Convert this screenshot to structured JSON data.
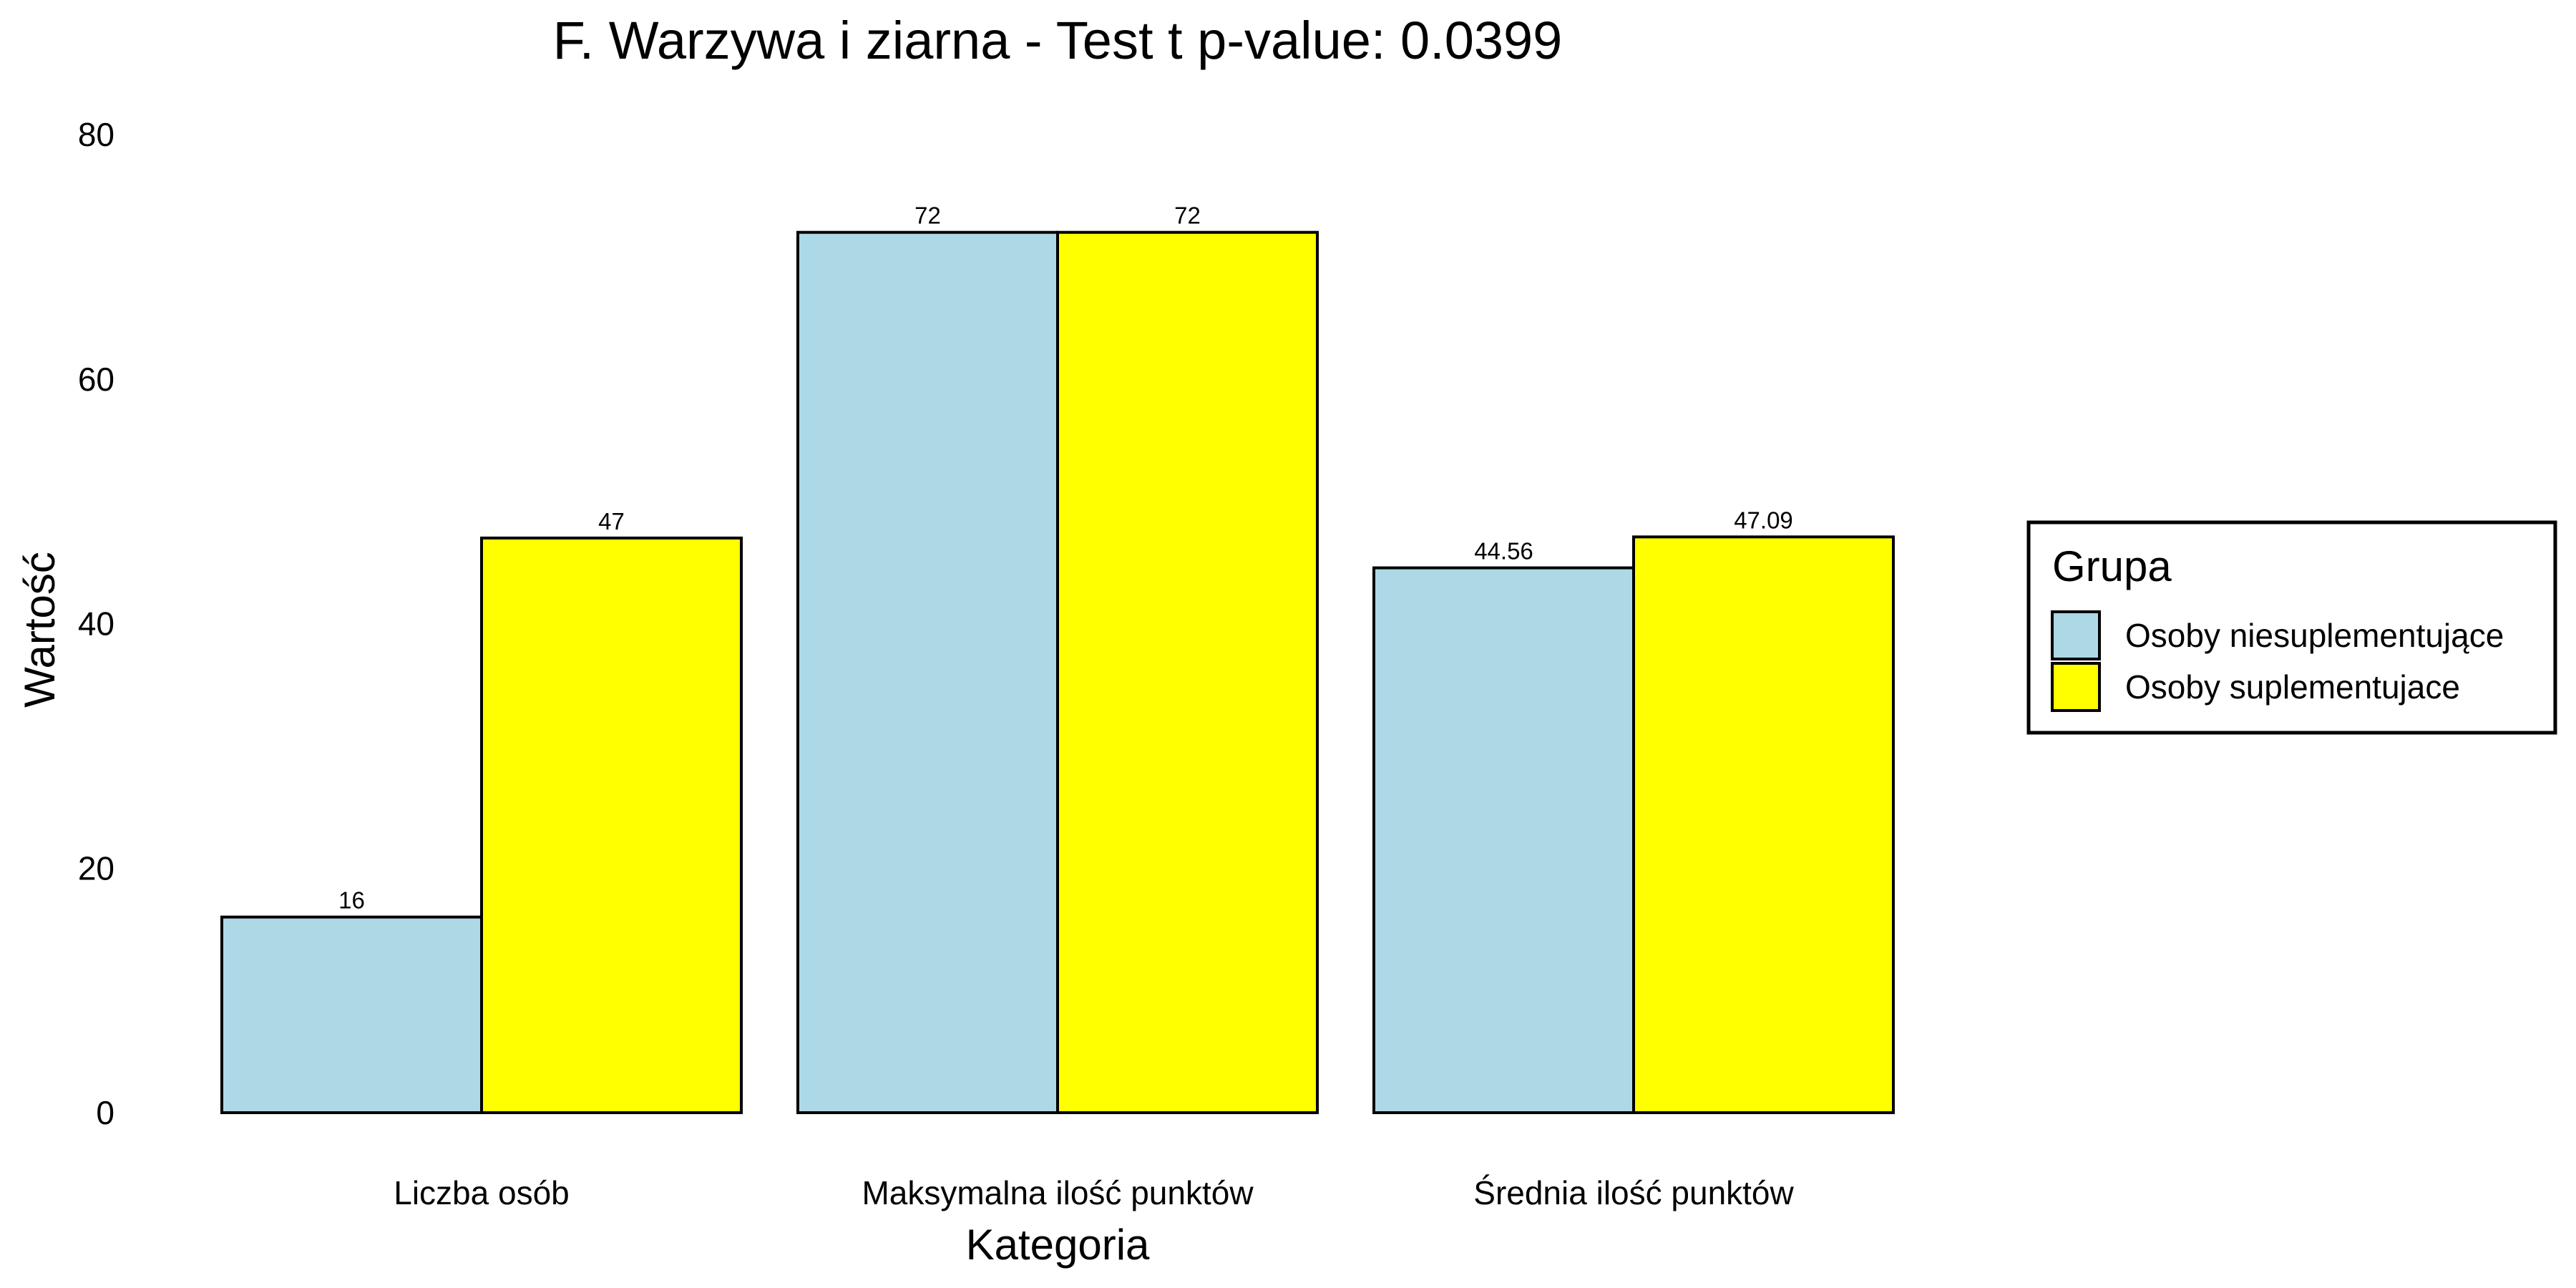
{
  "chart_data": {
    "type": "bar",
    "title": "F. Warzywa i ziarna - Test t p-value: 0.0399",
    "xlabel": "Kategoria",
    "ylabel": "Wartość",
    "categories": [
      "Liczba osób",
      "Maksymalna ilość punktów",
      "Średnia ilość punktów"
    ],
    "series": [
      {
        "name": "Osoby niesuplementujące",
        "values": [
          16,
          72,
          44.56
        ],
        "labels": [
          "16",
          "72",
          "44.56"
        ],
        "color": "#add8e6"
      },
      {
        "name": "Osoby suplementujace",
        "values": [
          47,
          72,
          47.09
        ],
        "labels": [
          "47",
          "72",
          "47.09"
        ],
        "color": "#ffff00"
      }
    ],
    "ylim": [
      0,
      80
    ],
    "yticks": [
      0,
      20,
      40,
      60,
      80
    ],
    "grid": false,
    "legend": {
      "title": "Grupa",
      "position": "right"
    }
  }
}
